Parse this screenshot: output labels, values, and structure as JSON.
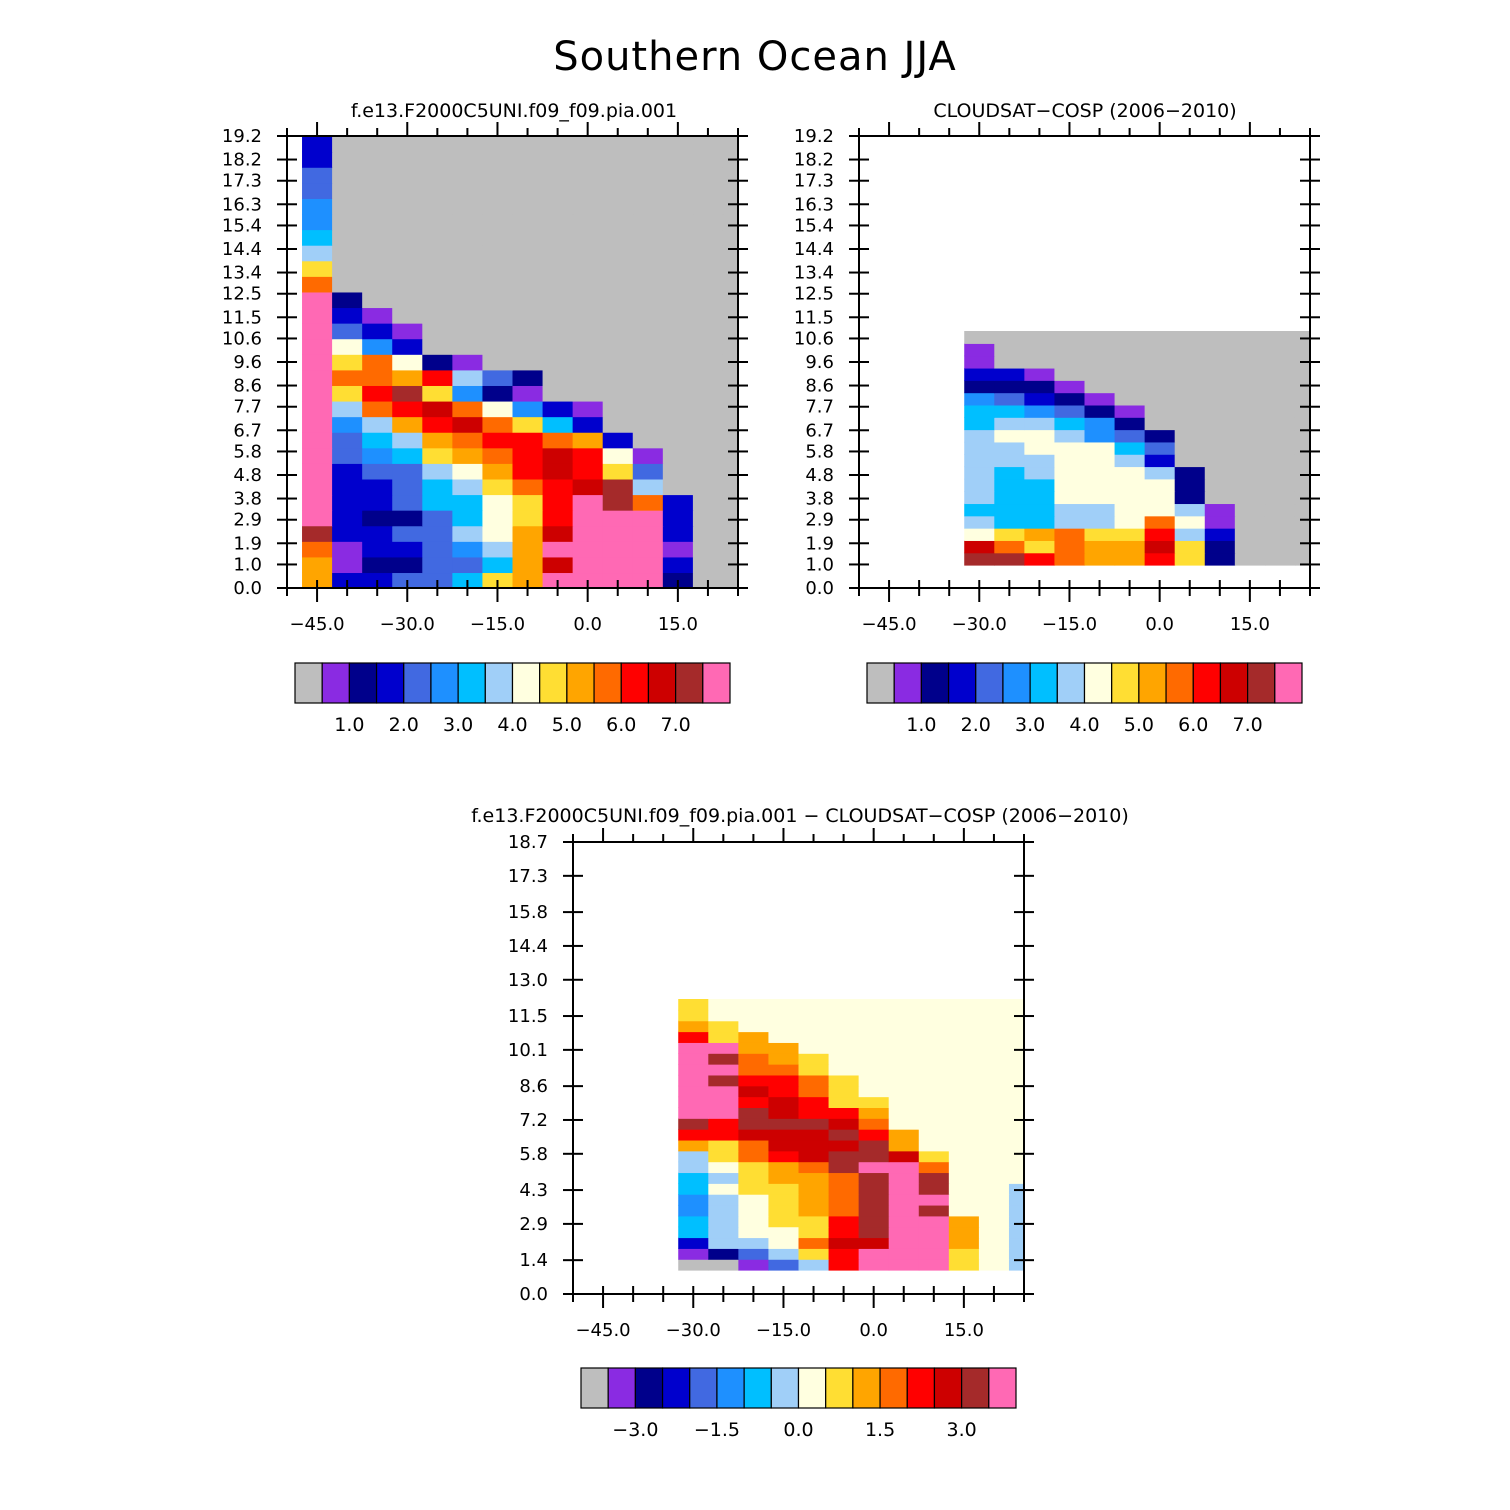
{
  "title": "Southern Ocean JJA",
  "palette": [
    "#bebebe",
    "#8a2be2",
    "#00008b",
    "#0000cd",
    "#4169e1",
    "#1e90ff",
    "#00bfff",
    "#a0cff8",
    "#ffffe0",
    "#ffde33",
    "#ffa500",
    "#ff6a00",
    "#ff0000",
    "#cd0000",
    "#a52a2a",
    "#ff69b4"
  ],
  "panels": [
    {
      "title": "f.e13.F2000C5UNI.f09_f09.pia.001",
      "ytick_labels": [
        "0.0",
        "1.0",
        "1.9",
        "2.9",
        "3.8",
        "4.8",
        "5.8",
        "6.7",
        "7.7",
        "8.6",
        "9.6",
        "10.6",
        "11.5",
        "12.5",
        "13.4",
        "14.4",
        "15.4",
        "16.3",
        "17.3",
        "18.2",
        "19.2"
      ],
      "xtick_labels": [
        "−45.0",
        "−30.0",
        "−15.0",
        "0.0",
        "15.0"
      ],
      "colorbar_labels": [
        "1.0",
        "2.0",
        "3.0",
        "4.0",
        "5.0",
        "6.0",
        "7.0"
      ]
    },
    {
      "title": "CLOUDSAT−COSP (2006−2010)",
      "ytick_labels": [
        "0.0",
        "1.0",
        "1.9",
        "2.9",
        "3.8",
        "4.8",
        "5.8",
        "6.7",
        "7.7",
        "8.6",
        "9.6",
        "10.6",
        "11.5",
        "12.5",
        "13.4",
        "14.4",
        "15.4",
        "16.3",
        "17.3",
        "18.2",
        "19.2"
      ],
      "xtick_labels": [
        "−45.0",
        "−30.0",
        "−15.0",
        "0.0",
        "15.0"
      ],
      "colorbar_labels": [
        "1.0",
        "2.0",
        "3.0",
        "4.0",
        "5.0",
        "6.0",
        "7.0"
      ]
    },
    {
      "title": "f.e13.F2000C5UNI.f09_f09.pia.001 − CLOUDSAT−COSP (2006−2010)",
      "ytick_labels": [
        "0.0",
        "1.4",
        "2.9",
        "4.3",
        "5.8",
        "7.2",
        "8.6",
        "10.1",
        "11.5",
        "13.0",
        "14.4",
        "15.8",
        "17.3",
        "18.7"
      ],
      "xtick_labels": [
        "−45.0",
        "−30.0",
        "−15.0",
        "0.0",
        "15.0"
      ],
      "colorbar_labels": [
        "−3.0",
        "−1.5",
        "0.0",
        "1.5",
        "3.0"
      ]
    }
  ],
  "chart_data": [
    {
      "type": "heatmap",
      "title": "f.e13.F2000C5UNI.f09_f09.pia.001",
      "x": [
        -45,
        -40,
        -35,
        -30,
        -25,
        -20,
        -15,
        -10,
        -5,
        0,
        5,
        10,
        15,
        20,
        25
      ],
      "xlim": [
        -50,
        25
      ],
      "ylim": [
        0,
        19.2
      ],
      "yticks": [
        0.0,
        1.0,
        1.9,
        2.9,
        3.8,
        4.8,
        5.8,
        6.7,
        7.7,
        8.6,
        9.6,
        10.6,
        11.5,
        12.5,
        13.4,
        14.4,
        15.4,
        16.3,
        17.3,
        18.2,
        19.2
      ],
      "xticks": [
        -45,
        -30,
        -15,
        0,
        15
      ],
      "levels": [
        1.0,
        2.0,
        3.0,
        4.0,
        5.0,
        6.0,
        7.0
      ],
      "z": [
        [
          10,
          3,
          3,
          4,
          4,
          6,
          9,
          10,
          15,
          15,
          15,
          15,
          2,
          0,
          0
        ],
        [
          10,
          1,
          2,
          2,
          4,
          4,
          6,
          10,
          13,
          15,
          15,
          15,
          3,
          0,
          0
        ],
        [
          11,
          1,
          3,
          3,
          4,
          5,
          7,
          10,
          15,
          15,
          15,
          15,
          1,
          0,
          0
        ],
        [
          14,
          3,
          3,
          4,
          4,
          7,
          8,
          10,
          13,
          15,
          15,
          15,
          3,
          0,
          0
        ],
        [
          15,
          3,
          2,
          2,
          4,
          6,
          8,
          9,
          12,
          15,
          15,
          15,
          3,
          0,
          0
        ],
        [
          15,
          3,
          3,
          4,
          6,
          6,
          8,
          9,
          12,
          15,
          14,
          11,
          3,
          0,
          0
        ],
        [
          15,
          3,
          3,
          4,
          6,
          7,
          9,
          11,
          12,
          13,
          14,
          7,
          0,
          0,
          0
        ],
        [
          15,
          3,
          4,
          4,
          7,
          8,
          10,
          12,
          13,
          12,
          9,
          4,
          0,
          0,
          0
        ],
        [
          15,
          4,
          5,
          6,
          9,
          10,
          11,
          12,
          13,
          12,
          8,
          1,
          0,
          0,
          0
        ],
        [
          15,
          4,
          6,
          7,
          10,
          11,
          12,
          12,
          11,
          10,
          3,
          0,
          0,
          0,
          0
        ],
        [
          15,
          5,
          7,
          10,
          12,
          13,
          11,
          9,
          6,
          3,
          0,
          0,
          0,
          0,
          0
        ],
        [
          15,
          7,
          11,
          12,
          13,
          11,
          8,
          5,
          3,
          1,
          0,
          0,
          0,
          0,
          0
        ],
        [
          15,
          9,
          12,
          14,
          9,
          5,
          2,
          1,
          0,
          0,
          0,
          0,
          0,
          0,
          0
        ],
        [
          15,
          11,
          11,
          10,
          12,
          7,
          4,
          2,
          0,
          0,
          0,
          0,
          0,
          0,
          0
        ],
        [
          15,
          9,
          11,
          8,
          2,
          1,
          0,
          0,
          0,
          0,
          0,
          0,
          0,
          0,
          0
        ],
        [
          15,
          8,
          5,
          3,
          0,
          0,
          0,
          0,
          0,
          0,
          0,
          0,
          0,
          0,
          0
        ],
        [
          15,
          4,
          3,
          1,
          0,
          0,
          0,
          0,
          0,
          0,
          0,
          0,
          0,
          0,
          0
        ],
        [
          15,
          3,
          1,
          0,
          0,
          0,
          0,
          0,
          0,
          0,
          0,
          0,
          0,
          0,
          0
        ],
        [
          15,
          2,
          0,
          0,
          0,
          0,
          0,
          0,
          0,
          0,
          0,
          0,
          0,
          0,
          0
        ],
        [
          11,
          0,
          0,
          0,
          0,
          0,
          0,
          0,
          0,
          0,
          0,
          0,
          0,
          0,
          0
        ],
        [
          9,
          0,
          0,
          0,
          0,
          0,
          0,
          0,
          0,
          0,
          0,
          0,
          0,
          0,
          0
        ],
        [
          7,
          0,
          0,
          0,
          0,
          0,
          0,
          0,
          0,
          0,
          0,
          0,
          0,
          0,
          0
        ],
        [
          6,
          0,
          0,
          0,
          0,
          0,
          0,
          0,
          0,
          0,
          0,
          0,
          0,
          0,
          0
        ],
        [
          5,
          0,
          0,
          0,
          0,
          0,
          0,
          0,
          0,
          0,
          0,
          0,
          0,
          0,
          0
        ],
        [
          5,
          0,
          0,
          0,
          0,
          0,
          0,
          0,
          0,
          0,
          0,
          0,
          0,
          0,
          0
        ],
        [
          4,
          0,
          0,
          0,
          0,
          0,
          0,
          0,
          0,
          0,
          0,
          0,
          0,
          0,
          0
        ],
        [
          4,
          0,
          0,
          0,
          0,
          0,
          0,
          0,
          0,
          0,
          0,
          0,
          0,
          0,
          0
        ],
        [
          3,
          0,
          0,
          0,
          0,
          0,
          0,
          0,
          0,
          0,
          0,
          0,
          0,
          0,
          0
        ],
        [
          3,
          0,
          0,
          0,
          0,
          0,
          0,
          0,
          0,
          0,
          0,
          0,
          0,
          0,
          0
        ]
      ]
    },
    {
      "type": "heatmap",
      "title": "CLOUDSAT−COSP (2006−2010)",
      "x": [
        -30,
        -25,
        -20,
        -15,
        -10,
        -5,
        0,
        5,
        10,
        15,
        20,
        25
      ],
      "xlim": [
        -50,
        25
      ],
      "ylim": [
        0,
        19.2
      ],
      "yticks": [
        0.0,
        1.0,
        1.9,
        2.9,
        3.8,
        4.8,
        5.8,
        6.7,
        7.7,
        8.6,
        9.6,
        10.6,
        11.5,
        12.5,
        13.4,
        14.4,
        15.4,
        16.3,
        17.3,
        18.2,
        19.2
      ],
      "xticks": [
        -45,
        -30,
        -15,
        0,
        15
      ],
      "levels": [
        1.0,
        2.0,
        3.0,
        4.0,
        5.0,
        6.0,
        7.0
      ],
      "z": [
        [
          14,
          14,
          12,
          11,
          10,
          10,
          12,
          9,
          2,
          0,
          0,
          0
        ],
        [
          13,
          11,
          9,
          11,
          10,
          10,
          13,
          9,
          2,
          0,
          0,
          0
        ],
        [
          8,
          9,
          10,
          11,
          9,
          9,
          12,
          7,
          3,
          0,
          0,
          0
        ],
        [
          7,
          6,
          6,
          7,
          7,
          8,
          11,
          8,
          1,
          0,
          0,
          0
        ],
        [
          6,
          6,
          6,
          7,
          7,
          8,
          8,
          7,
          1,
          0,
          0,
          0
        ],
        [
          7,
          6,
          6,
          8,
          8,
          8,
          8,
          2,
          0,
          0,
          0,
          0
        ],
        [
          7,
          6,
          6,
          8,
          8,
          8,
          8,
          2,
          0,
          0,
          0,
          0
        ],
        [
          7,
          6,
          7,
          8,
          8,
          8,
          7,
          2,
          0,
          0,
          0,
          0
        ],
        [
          7,
          7,
          7,
          8,
          8,
          7,
          3,
          0,
          0,
          0,
          0,
          0
        ],
        [
          7,
          7,
          8,
          8,
          8,
          6,
          4,
          0,
          0,
          0,
          0,
          0
        ],
        [
          7,
          8,
          8,
          7,
          5,
          4,
          2,
          0,
          0,
          0,
          0,
          0
        ],
        [
          6,
          7,
          7,
          6,
          5,
          2,
          0,
          0,
          0,
          0,
          0,
          0
        ],
        [
          6,
          6,
          5,
          4,
          2,
          1,
          0,
          0,
          0,
          0,
          0,
          0
        ],
        [
          5,
          4,
          3,
          2,
          1,
          0,
          0,
          0,
          0,
          0,
          0,
          0
        ],
        [
          2,
          2,
          2,
          1,
          0,
          0,
          0,
          0,
          0,
          0,
          0,
          0
        ],
        [
          3,
          3,
          1,
          0,
          0,
          0,
          0,
          0,
          0,
          0,
          0,
          0
        ],
        [
          1,
          0,
          0,
          0,
          0,
          0,
          0,
          0,
          0,
          0,
          0,
          0
        ],
        [
          1,
          0,
          0,
          0,
          0,
          0,
          0,
          0,
          0,
          0,
          0,
          0
        ],
        [
          0,
          0,
          0,
          0,
          0,
          0,
          0,
          0,
          0,
          0,
          0,
          0
        ]
      ]
    },
    {
      "type": "heatmap",
      "title": "f.e13.F2000C5UNI.f09_f09.pia.001 − CLOUDSAT−COSP (2006−2010)",
      "x": [
        -30,
        -25,
        -20,
        -15,
        -10,
        -5,
        0,
        5,
        10,
        15,
        20,
        25
      ],
      "xlim": [
        -50,
        25
      ],
      "ylim": [
        0,
        18.7
      ],
      "yticks": [
        0.0,
        1.4,
        2.9,
        4.3,
        5.8,
        7.2,
        8.6,
        10.1,
        11.5,
        13.0,
        14.4,
        15.8,
        17.3,
        18.7
      ],
      "xticks": [
        -45,
        -30,
        -15,
        0,
        15
      ],
      "levels": [
        -3.0,
        -1.5,
        0.0,
        1.5,
        3.0
      ],
      "z": [
        [
          0,
          0,
          1,
          4,
          7,
          12,
          15,
          15,
          15,
          9,
          8,
          7
        ],
        [
          1,
          2,
          4,
          7,
          9,
          12,
          15,
          15,
          15,
          9,
          8,
          7
        ],
        [
          3,
          7,
          7,
          8,
          11,
          13,
          13,
          15,
          15,
          10,
          8,
          7
        ],
        [
          6,
          7,
          8,
          8,
          9,
          12,
          14,
          15,
          15,
          10,
          8,
          7
        ],
        [
          6,
          7,
          8,
          9,
          9,
          12,
          14,
          15,
          15,
          10,
          8,
          7
        ],
        [
          5,
          7,
          8,
          9,
          10,
          11,
          14,
          15,
          14,
          8,
          8,
          7
        ],
        [
          5,
          7,
          8,
          9,
          10,
          11,
          14,
          15,
          15,
          8,
          8,
          7
        ],
        [
          6,
          8,
          9,
          9,
          10,
          11,
          14,
          15,
          14,
          8,
          8,
          7
        ],
        [
          6,
          7,
          9,
          10,
          10,
          11,
          14,
          15,
          14,
          8,
          8,
          8
        ],
        [
          7,
          8,
          9,
          10,
          11,
          14,
          15,
          15,
          11,
          8,
          8,
          8
        ],
        [
          7,
          9,
          11,
          12,
          13,
          14,
          14,
          13,
          9,
          8,
          8,
          8
        ],
        [
          10,
          9,
          11,
          13,
          13,
          13,
          14,
          10,
          8,
          8,
          8,
          8
        ],
        [
          12,
          12,
          13,
          13,
          13,
          14,
          12,
          10,
          8,
          8,
          8,
          8
        ],
        [
          14,
          12,
          14,
          14,
          14,
          13,
          11,
          8,
          8,
          8,
          8,
          8
        ],
        [
          15,
          15,
          14,
          13,
          12,
          12,
          10,
          8,
          8,
          8,
          8,
          8
        ],
        [
          15,
          15,
          12,
          13,
          12,
          9,
          9,
          8,
          8,
          8,
          8,
          8
        ],
        [
          15,
          15,
          13,
          12,
          11,
          9,
          8,
          8,
          8,
          8,
          8,
          8
        ],
        [
          15,
          14,
          12,
          12,
          11,
          9,
          8,
          8,
          8,
          8,
          8,
          8
        ],
        [
          15,
          15,
          11,
          11,
          9,
          8,
          8,
          8,
          8,
          8,
          8,
          8
        ],
        [
          15,
          14,
          11,
          10,
          9,
          8,
          8,
          8,
          8,
          8,
          8,
          8
        ],
        [
          15,
          15,
          10,
          10,
          8,
          8,
          8,
          8,
          8,
          8,
          8,
          8
        ],
        [
          12,
          9,
          10,
          8,
          8,
          8,
          8,
          8,
          8,
          8,
          8,
          8
        ],
        [
          10,
          9,
          8,
          8,
          8,
          8,
          8,
          8,
          8,
          8,
          8,
          8
        ],
        [
          9,
          8,
          8,
          8,
          8,
          8,
          8,
          8,
          8,
          8,
          8,
          8
        ],
        [
          9,
          8,
          8,
          8,
          8,
          8,
          8,
          8,
          8,
          8,
          8,
          8
        ]
      ]
    }
  ]
}
